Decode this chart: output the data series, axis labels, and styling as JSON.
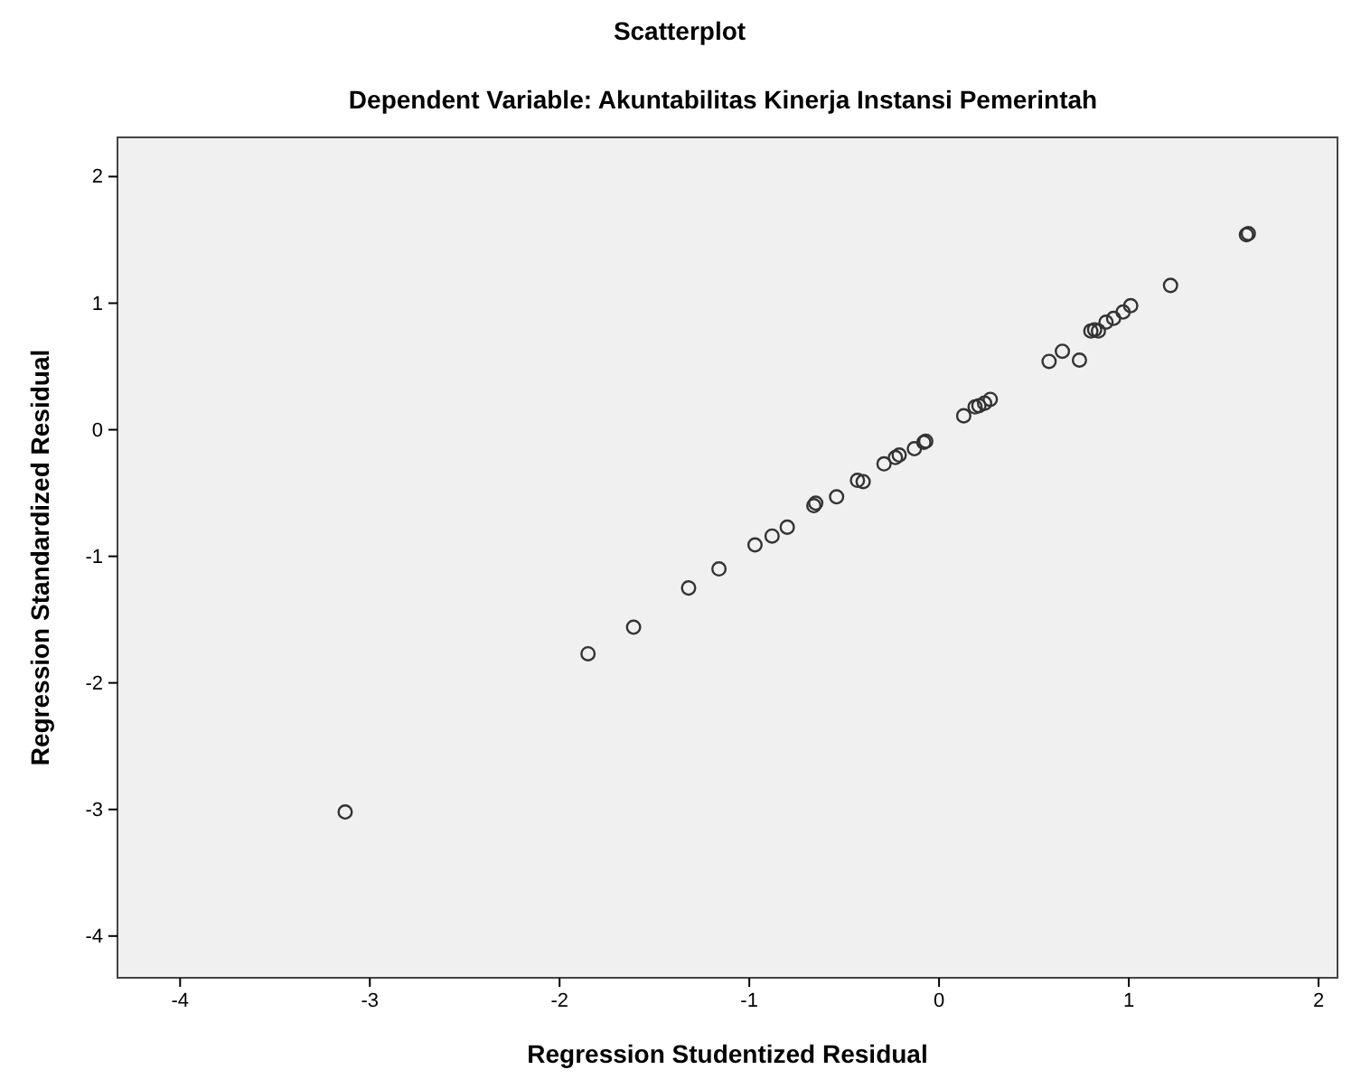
{
  "chart_data": {
    "type": "scatter",
    "title": "Scatterplot",
    "subtitle": "Dependent Variable: Akuntabilitas Kinerja Instansi Pemerintah",
    "xlabel": "Regression Studentized Residual",
    "ylabel": "Regression Standardized Residual",
    "xlim": [
      -4.33,
      2.1
    ],
    "ylim": [
      -4.33,
      2.31
    ],
    "xticks": [
      -4,
      -3,
      -2,
      -1,
      0,
      1,
      2
    ],
    "yticks": [
      -4,
      -3,
      -2,
      -1,
      0,
      1,
      2
    ],
    "grid": false,
    "marker": "circle",
    "series": [
      {
        "color": "#333333",
        "x": [
          -3.13,
          -1.85,
          -1.61,
          -1.32,
          -1.16,
          -0.97,
          -0.88,
          -0.8,
          -0.66,
          -0.65,
          -0.54,
          -0.43,
          -0.4,
          -0.29,
          -0.23,
          -0.21,
          -0.13,
          -0.08,
          -0.07,
          0.13,
          0.19,
          0.21,
          0.24,
          0.27,
          0.58,
          0.65,
          0.74,
          0.8,
          0.82,
          0.84,
          0.88,
          0.92,
          0.97,
          1.01,
          1.22,
          1.62,
          1.63
        ],
        "values": [
          -3.02,
          -1.77,
          -1.56,
          -1.25,
          -1.1,
          -0.91,
          -0.84,
          -0.77,
          -0.6,
          -0.58,
          -0.53,
          -0.4,
          -0.41,
          -0.27,
          -0.22,
          -0.2,
          -0.15,
          -0.1,
          -0.09,
          0.11,
          0.18,
          0.19,
          0.21,
          0.24,
          0.54,
          0.62,
          0.55,
          0.78,
          0.79,
          0.78,
          0.85,
          0.88,
          0.93,
          0.98,
          1.14,
          1.54,
          1.55
        ]
      }
    ]
  }
}
